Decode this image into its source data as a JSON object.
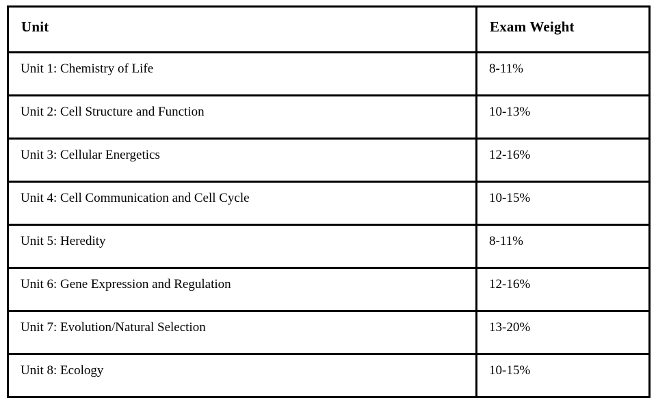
{
  "table": {
    "columns": {
      "unit": "Unit",
      "weight": "Exam Weight"
    },
    "rows": [
      {
        "unit": "Unit 1: Chemistry of Life",
        "weight": "8-11%"
      },
      {
        "unit": "Unit 2: Cell Structure and Function",
        "weight": "10-13%"
      },
      {
        "unit": "Unit 3: Cellular Energetics",
        "weight": "12-16%"
      },
      {
        "unit": "Unit 4: Cell Communication and Cell Cycle",
        "weight": "10-15%"
      },
      {
        "unit": "Unit 5: Heredity",
        "weight": "8-11%"
      },
      {
        "unit": "Unit 6: Gene Expression and Regulation",
        "weight": "12-16%"
      },
      {
        "unit": "Unit 7: Evolution/Natural Selection",
        "weight": "13-20%"
      },
      {
        "unit": "Unit 8: Ecology",
        "weight": "10-15%"
      }
    ]
  },
  "colors": {
    "border": "#000000",
    "background": "#ffffff",
    "text": "#000000"
  }
}
